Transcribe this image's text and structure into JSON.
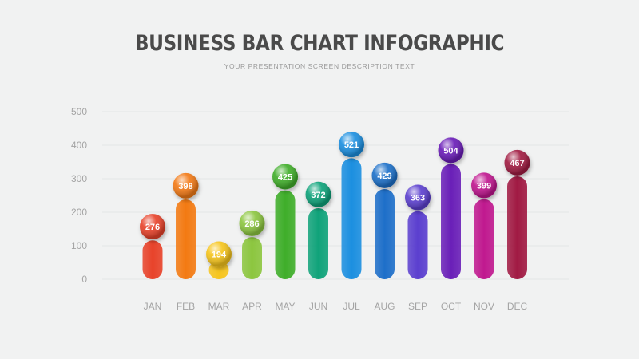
{
  "title": "BUSINESS BAR CHART INFOGRAPHIC",
  "subtitle": "YOUR PRESENTATION SCREEN DESCRIPTION TEXT",
  "chart_data": {
    "type": "bar",
    "categories": [
      "JAN",
      "FEB",
      "MAR",
      "APR",
      "MAY",
      "JUN",
      "JUL",
      "AUG",
      "SEP",
      "OCT",
      "NOV",
      "DEC"
    ],
    "values": [
      276,
      398,
      194,
      286,
      425,
      372,
      521,
      429,
      363,
      504,
      399,
      467
    ],
    "ylim": [
      0,
      500
    ],
    "yticks": [
      0,
      100,
      200,
      300,
      400,
      500
    ],
    "grid": true,
    "colors": [
      "#e8432a",
      "#f37a12",
      "#f6c51e",
      "#8cc63f",
      "#3fae2a",
      "#10a37a",
      "#1b8fe0",
      "#1e6fc9",
      "#5b3fcf",
      "#6a1fb8",
      "#c0198f",
      "#a11a43"
    ]
  }
}
